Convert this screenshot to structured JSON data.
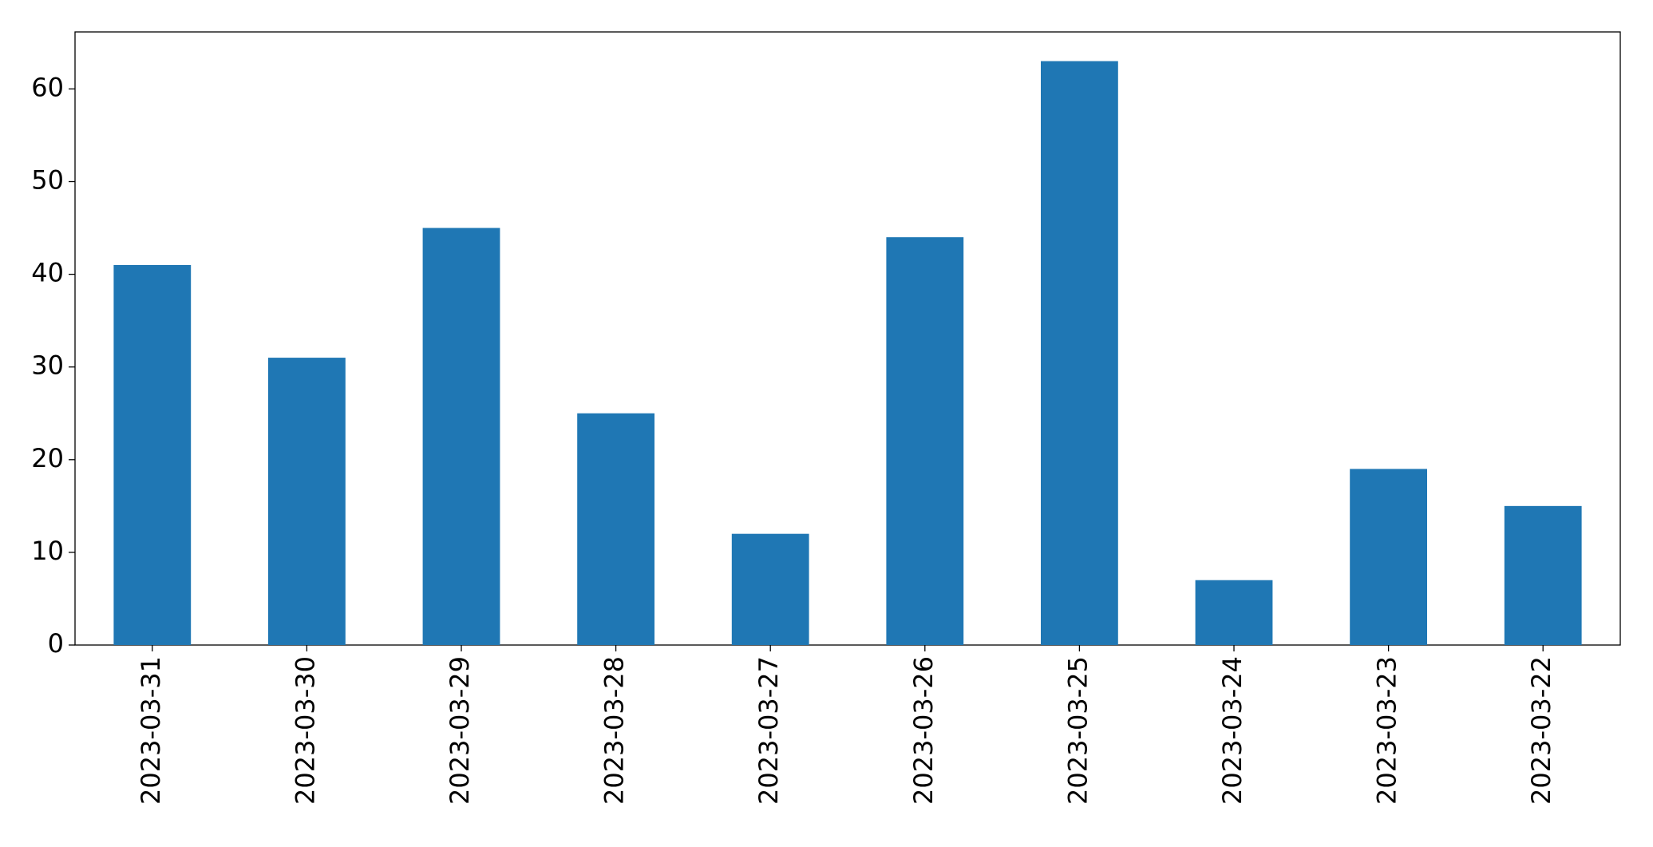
{
  "chart_data": {
    "type": "bar",
    "categories": [
      "2023-03-31",
      "2023-03-30",
      "2023-03-29",
      "2023-03-28",
      "2023-03-27",
      "2023-03-26",
      "2023-03-25",
      "2023-03-24",
      "2023-03-23",
      "2023-03-22"
    ],
    "values": [
      41,
      31,
      45,
      25,
      12,
      44,
      63,
      7,
      19,
      15
    ],
    "color": "#1f77b4",
    "ylim": [
      0,
      66.15
    ],
    "yticks": [
      0,
      10,
      20,
      30,
      40,
      50,
      60
    ],
    "grid": false
  }
}
